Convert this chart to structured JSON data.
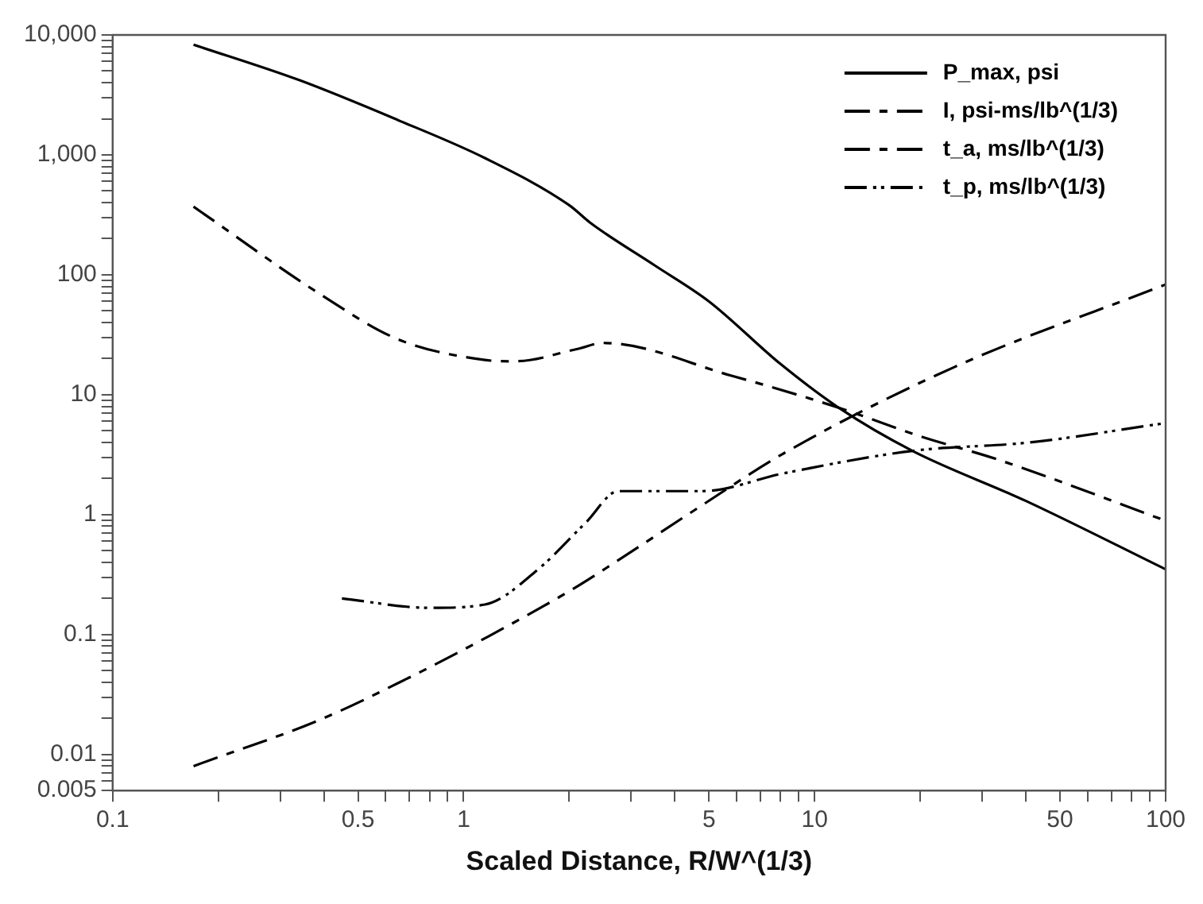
{
  "chart_data": {
    "type": "line",
    "xlabel": "Scaled Distance, R/W^(1/3)",
    "log": "xy",
    "legend": "top right",
    "grid": false,
    "marker": "none",
    "xlim": [
      0.1,
      100
    ],
    "ylim": [
      0.005,
      10000
    ],
    "xticks": [
      0.1,
      {
        "value": 0.2,
        "label": null
      },
      {
        "value": 0.3,
        "label": null
      },
      {
        "value": 0.4,
        "label": null
      },
      0.5,
      {
        "value": 0.6,
        "label": null
      },
      {
        "value": 0.7,
        "label": null
      },
      {
        "value": 0.8,
        "label": null
      },
      {
        "value": 0.9,
        "label": null
      },
      1,
      {
        "value": 2,
        "label": null
      },
      {
        "value": 3,
        "label": null
      },
      {
        "value": 4,
        "label": null
      },
      5,
      {
        "value": 6,
        "label": null
      },
      {
        "value": 7,
        "label": null
      },
      {
        "value": 8,
        "label": null
      },
      {
        "value": 9,
        "label": null
      },
      10,
      {
        "value": 20,
        "label": null
      },
      {
        "value": 30,
        "label": null
      },
      {
        "value": 40,
        "label": null
      },
      50,
      {
        "value": 60,
        "label": null
      },
      {
        "value": 70,
        "label": null
      },
      {
        "value": 80,
        "label": null
      },
      {
        "value": 90,
        "label": null
      },
      100
    ],
    "yticks": [
      0.005,
      {
        "value": 0.006,
        "label": null
      },
      {
        "value": 0.007,
        "label": null
      },
      {
        "value": 0.008,
        "label": null
      },
      {
        "value": 0.009,
        "label": null
      },
      0.01,
      {
        "value": 0.02,
        "label": null
      },
      {
        "value": 0.03,
        "label": null
      },
      {
        "value": 0.04,
        "label": null
      },
      {
        "value": 0.05,
        "label": null
      },
      {
        "value": 0.06,
        "label": null
      },
      {
        "value": 0.07,
        "label": null
      },
      {
        "value": 0.08,
        "label": null
      },
      {
        "value": 0.09,
        "label": null
      },
      0.1,
      {
        "value": 0.2,
        "label": null
      },
      {
        "value": 0.3,
        "label": null
      },
      {
        "value": 0.4,
        "label": null
      },
      {
        "value": 0.5,
        "label": null
      },
      {
        "value": 0.6,
        "label": null
      },
      {
        "value": 0.7,
        "label": null
      },
      {
        "value": 0.8,
        "label": null
      },
      {
        "value": 0.9,
        "label": null
      },
      1,
      {
        "value": 2,
        "label": null
      },
      {
        "value": 3,
        "label": null
      },
      {
        "value": 4,
        "label": null
      },
      {
        "value": 5,
        "label": null
      },
      {
        "value": 6,
        "label": null
      },
      {
        "value": 7,
        "label": null
      },
      {
        "value": 8,
        "label": null
      },
      {
        "value": 9,
        "label": null
      },
      10,
      {
        "value": 20,
        "label": null
      },
      {
        "value": 30,
        "label": null
      },
      {
        "value": 40,
        "label": null
      },
      {
        "value": 50,
        "label": null
      },
      {
        "value": 60,
        "label": null
      },
      {
        "value": 70,
        "label": null
      },
      {
        "value": 80,
        "label": null
      },
      {
        "value": 90,
        "label": null
      },
      100,
      {
        "value": 200,
        "label": null
      },
      {
        "value": 300,
        "label": null
      },
      {
        "value": 400,
        "label": null
      },
      {
        "value": 500,
        "label": null
      },
      {
        "value": 600,
        "label": null
      },
      {
        "value": 700,
        "label": null
      },
      {
        "value": 800,
        "label": null
      },
      {
        "value": 900,
        "label": null
      },
      {
        "value": 1000,
        "label": "1,000"
      },
      {
        "value": 2000,
        "label": null
      },
      {
        "value": 3000,
        "label": null
      },
      {
        "value": 4000,
        "label": null
      },
      {
        "value": 5000,
        "label": null
      },
      {
        "value": 6000,
        "label": null
      },
      {
        "value": 7000,
        "label": null
      },
      {
        "value": 8000,
        "label": null
      },
      {
        "value": 9000,
        "label": null
      },
      {
        "value": 10000,
        "label": "10,000"
      }
    ],
    "series": [
      {
        "name": "P_max, psi",
        "color": "#000000",
        "line_style": "solid",
        "x": [
          0.17,
          0.34,
          0.65,
          1.15,
          2,
          2.3,
          3.5,
          5,
          8,
          11.7,
          19,
          40,
          100
        ],
        "values": [
          8300,
          4200,
          1950,
          940,
          380,
          270,
          120,
          60,
          18,
          7.8,
          3.4,
          1.3,
          0.35
        ]
      },
      {
        "name": "I, psi-ms/lb^(1/3)",
        "color": "#000000",
        "line_style": "dashed",
        "x": [
          0.17,
          0.39,
          0.65,
          1.15,
          1.4,
          2.1,
          2.5,
          5.8,
          11.7,
          20,
          33,
          100
        ],
        "values": [
          370,
          69,
          29,
          19.5,
          19,
          24,
          27,
          14.4,
          7.8,
          4.5,
          2.9,
          0.89
        ]
      },
      {
        "name": "t_a, ms/lb^(1/3)",
        "color": "#000000",
        "line_style": "dashed",
        "x": [
          0.17,
          0.39,
          0.68,
          1.18,
          2.05,
          2.7,
          4.7,
          8.1,
          25,
          100
        ],
        "values": [
          0.008,
          0.0195,
          0.042,
          0.097,
          0.24,
          0.4,
          1.16,
          3.2,
          17,
          83
        ]
      },
      {
        "name": "t_p, ms/lb^(1/3)",
        "color": "#000000",
        "line_style": "dotted",
        "x": [
          0.45,
          0.8,
          1.15,
          1.63,
          2.23,
          2.76,
          4.8,
          8.1,
          19,
          41,
          100
        ],
        "values": [
          0.2,
          0.167,
          0.178,
          0.35,
          0.86,
          1.57,
          1.57,
          2.2,
          3.4,
          4,
          5.8
        ]
      }
    ]
  }
}
